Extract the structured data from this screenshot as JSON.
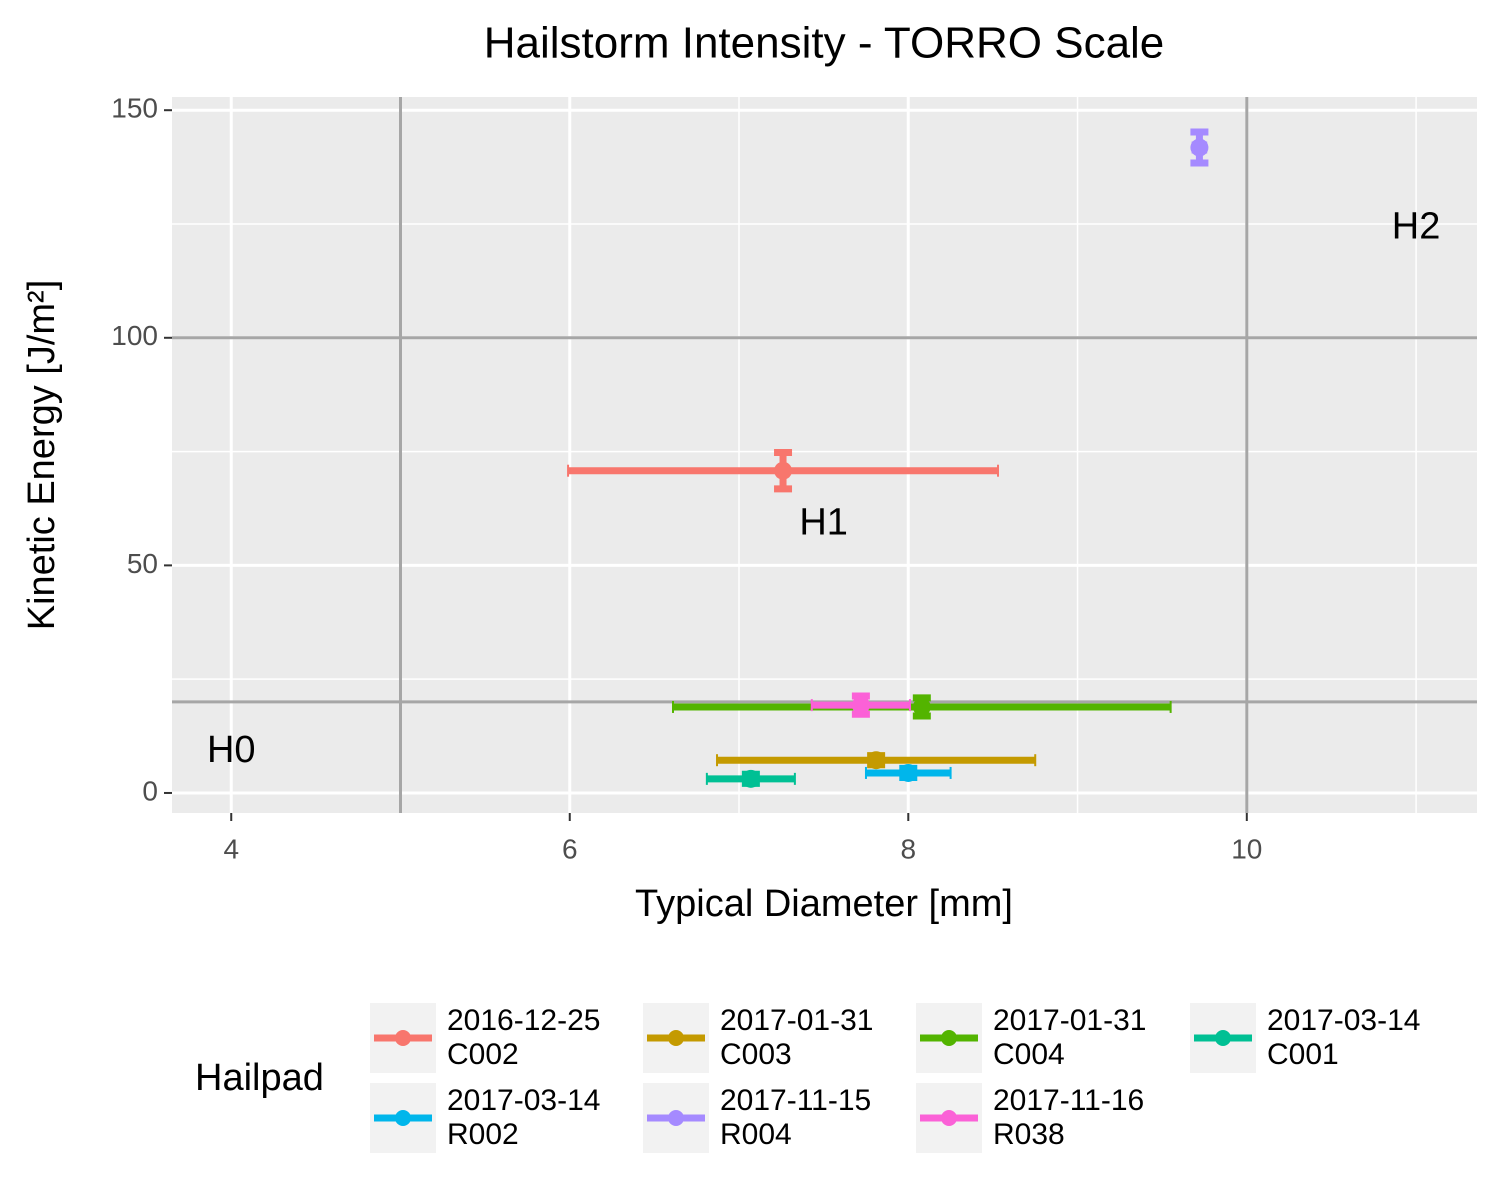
{
  "chart_data": {
    "type": "scatter",
    "title": "Hailstorm Intensity - TORRO Scale",
    "x_label": "Typical Diameter [mm]",
    "y_label": "Kinetic Energy [J/m²]",
    "legend_title": "Hailpad",
    "xlim": [
      3.65,
      11.36
    ],
    "ylim": [
      -4.4,
      152.9
    ],
    "xticks": [
      4,
      6,
      8,
      10
    ],
    "yticks": [
      0,
      50,
      100,
      150
    ],
    "grid": true,
    "legend_position": "bottom",
    "ref_color": "#a6a6a6",
    "vlines": [
      5,
      10
    ],
    "hlines": [
      20,
      100
    ],
    "annotations": [
      {
        "text": "H0",
        "x": 4,
        "y": 9
      },
      {
        "text": "H1",
        "x": 7.5,
        "y": 59
      },
      {
        "text": "H2",
        "x": 11,
        "y": 124
      }
    ],
    "series": [
      {
        "name": "2016-12-25\nC002",
        "color": "#F8766D",
        "x": [
          7.26
        ],
        "y": [
          70.8
        ],
        "xerr": [
          1.27
        ],
        "yerr": [
          4
        ]
      },
      {
        "name": "2017-01-31\nC003",
        "color": "#C49A00",
        "x": [
          7.81
        ],
        "y": [
          7.2
        ],
        "xerr": [
          0.94
        ],
        "yerr": [
          1
        ]
      },
      {
        "name": "2017-01-31\nC004",
        "color": "#53B400",
        "x": [
          8.08
        ],
        "y": [
          18.9
        ],
        "xerr": [
          1.47
        ],
        "yerr": [
          2
        ]
      },
      {
        "name": "2017-03-14\nC001",
        "color": "#00C094",
        "x": [
          7.07
        ],
        "y": [
          3.1
        ],
        "xerr": [
          0.26
        ],
        "yerr": [
          1
        ]
      },
      {
        "name": "2017-03-14\nR002",
        "color": "#00B6EB",
        "x": [
          8.0
        ],
        "y": [
          4.4
        ],
        "xerr": [
          0.25
        ],
        "yerr": [
          1
        ]
      },
      {
        "name": "2017-11-15\nR004",
        "color": "#A58AFF",
        "x": [
          9.72
        ],
        "y": [
          141.8
        ],
        "xerr": [
          0.04
        ],
        "yerr": [
          3.4
        ]
      },
      {
        "name": "2017-11-16\nR038",
        "color": "#FB61D7",
        "x": [
          7.72
        ],
        "y": [
          19.3
        ],
        "xerr": [
          0.29
        ],
        "yerr": [
          2
        ]
      }
    ]
  }
}
